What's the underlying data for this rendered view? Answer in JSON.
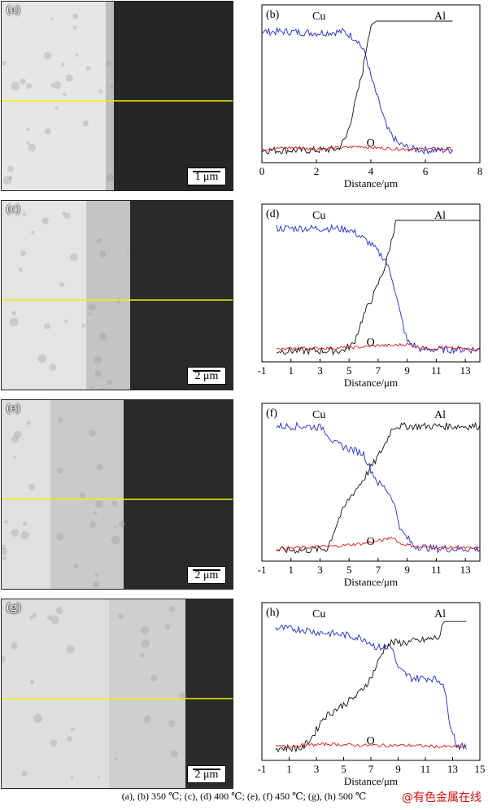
{
  "colors": {
    "cu": "#1c2cc8",
    "al": "#111111",
    "o": "#d81c1c",
    "scanline": "#f2f000"
  },
  "caption": "(a), (b) 350 ℃; (c), (d) 400 ℃; (e), (f) 450 ℃; (g), (h) 500 ℃",
  "watermark": "@有色金属在线",
  "panels": [
    {
      "sem_tag": "(a)",
      "plot_tag": "(b)",
      "scale": "1 μm"
    },
    {
      "sem_tag": "(c)",
      "plot_tag": "(d)",
      "scale": "2 μm"
    },
    {
      "sem_tag": "(e)",
      "plot_tag": "(f)",
      "scale": "2 μm"
    },
    {
      "sem_tag": "(g)",
      "plot_tag": "(h)",
      "scale": "2 μm"
    }
  ],
  "chart_data": [
    {
      "type": "line",
      "panel": "(b)",
      "xlabel": "Distance/μm",
      "xlim": [
        0,
        8
      ],
      "xticks": [
        0,
        2,
        4,
        6,
        8
      ],
      "series_labels": [
        "Cu",
        "Al",
        "O"
      ],
      "series": [
        {
          "name": "Cu",
          "x": [
            0,
            1,
            2,
            3,
            3.5,
            3.8,
            4.0,
            4.3,
            4.6,
            5.0,
            5.5,
            6,
            7
          ],
          "y": [
            0.92,
            0.92,
            0.91,
            0.92,
            0.86,
            0.75,
            0.58,
            0.38,
            0.18,
            0.07,
            0.03,
            0.02,
            0.02
          ]
        },
        {
          "name": "Al",
          "x": [
            0,
            1,
            2,
            2.8,
            3.1,
            3.4,
            3.7,
            3.9,
            4.0,
            4.2,
            5,
            6,
            7
          ],
          "y": [
            0.02,
            0.02,
            0.02,
            0.03,
            0.12,
            0.36,
            0.62,
            0.88,
            0.97,
            1.0,
            1.0,
            1.0,
            1.0
          ]
        },
        {
          "name": "O",
          "x": [
            0,
            1,
            2,
            3,
            3.6,
            4,
            5,
            6,
            7
          ],
          "y": [
            0.03,
            0.04,
            0.03,
            0.04,
            0.05,
            0.04,
            0.03,
            0.03,
            0.03
          ]
        }
      ]
    },
    {
      "type": "line",
      "panel": "(d)",
      "xlabel": "Distance/μm",
      "xlim": [
        -1,
        14
      ],
      "xticks": [
        -1,
        1,
        3,
        5,
        7,
        9,
        11,
        13
      ],
      "series_labels": [
        "Cu",
        "Al",
        "O"
      ],
      "series": [
        {
          "name": "Cu",
          "x": [
            0,
            2,
            4,
            5,
            5.5,
            6.5,
            7.5,
            8,
            8.5,
            9,
            10,
            12,
            14
          ],
          "y": [
            0.94,
            0.94,
            0.94,
            0.93,
            0.9,
            0.82,
            0.7,
            0.55,
            0.3,
            0.08,
            0.02,
            0.02,
            0.02
          ]
        },
        {
          "name": "Al",
          "x": [
            0,
            2,
            4.5,
            5.3,
            6,
            6.8,
            7.5,
            8,
            8.2,
            10,
            12,
            14
          ],
          "y": [
            0.01,
            0.01,
            0.01,
            0.06,
            0.28,
            0.46,
            0.66,
            0.88,
            1.0,
            1.0,
            1.0,
            1.0
          ]
        },
        {
          "name": "O",
          "x": [
            0,
            2,
            4,
            6,
            7,
            8,
            9,
            10,
            12,
            14
          ],
          "y": [
            0.02,
            0.03,
            0.03,
            0.04,
            0.05,
            0.05,
            0.06,
            0.03,
            0.03,
            0.02
          ]
        }
      ]
    },
    {
      "type": "line",
      "panel": "(f)",
      "xlabel": "Distance/μm",
      "xlim": [
        -1,
        14
      ],
      "xticks": [
        -1,
        1,
        3,
        5,
        7,
        9,
        11,
        13
      ],
      "series_labels": [
        "Cu",
        "Al",
        "O"
      ],
      "series": [
        {
          "name": "Cu",
          "x": [
            0,
            1,
            2,
            3.2,
            4,
            5,
            6,
            6.5,
            7,
            7.5,
            8,
            8.6,
            9.5,
            11,
            14
          ],
          "y": [
            0.95,
            0.95,
            0.95,
            0.94,
            0.82,
            0.78,
            0.74,
            0.62,
            0.52,
            0.48,
            0.4,
            0.15,
            0.04,
            0.02,
            0.02
          ]
        },
        {
          "name": "Al",
          "x": [
            0,
            2,
            3.5,
            4.3,
            5,
            6,
            7,
            7.5,
            7.9,
            8.1,
            10,
            14
          ],
          "y": [
            0.01,
            0.01,
            0.02,
            0.25,
            0.4,
            0.55,
            0.72,
            0.82,
            0.92,
            0.95,
            0.95,
            0.95
          ]
        },
        {
          "name": "O",
          "x": [
            0,
            2,
            4,
            6,
            7.5,
            8,
            8.5,
            10,
            12,
            14
          ],
          "y": [
            0.02,
            0.03,
            0.04,
            0.06,
            0.09,
            0.11,
            0.06,
            0.03,
            0.03,
            0.02
          ]
        }
      ]
    },
    {
      "type": "line",
      "panel": "(h)",
      "xlabel": "Distance/μm",
      "xlim": [
        -1,
        15
      ],
      "xticks": [
        -1,
        1,
        3,
        5,
        7,
        9,
        11,
        13,
        15
      ],
      "series_labels": [
        "Cu",
        "Al",
        "O"
      ],
      "series": [
        {
          "name": "Cu",
          "x": [
            0,
            2,
            3,
            5,
            6.5,
            7.5,
            8.5,
            9,
            10,
            11.5,
            12.3,
            12.8,
            13.3,
            14
          ],
          "y": [
            0.93,
            0.92,
            0.9,
            0.88,
            0.85,
            0.78,
            0.8,
            0.62,
            0.55,
            0.55,
            0.52,
            0.22,
            0.04,
            0.02
          ]
        },
        {
          "name": "Al",
          "x": [
            0,
            2,
            2.8,
            3.5,
            5,
            6,
            7,
            8,
            8.5,
            9.5,
            11,
            12,
            12.4,
            14
          ],
          "y": [
            0.02,
            0.02,
            0.12,
            0.25,
            0.35,
            0.42,
            0.55,
            0.78,
            0.82,
            0.82,
            0.84,
            0.86,
            0.98,
            0.98
          ]
        },
        {
          "name": "O",
          "x": [
            0,
            2,
            4,
            6,
            8,
            10,
            12,
            14
          ],
          "y": [
            0.03,
            0.04,
            0.05,
            0.04,
            0.04,
            0.04,
            0.03,
            0.03
          ]
        }
      ]
    }
  ]
}
